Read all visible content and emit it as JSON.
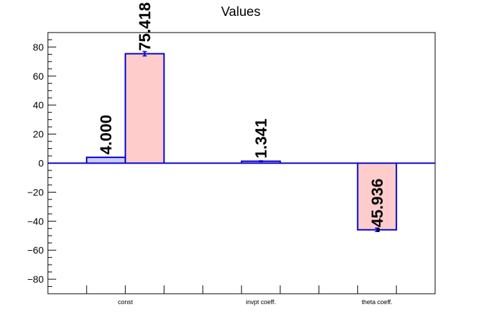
{
  "chart_data": {
    "type": "bar",
    "title": "Values",
    "categories": [
      "const",
      "invpt coeff.",
      "theta coeff."
    ],
    "ylim": [
      -90,
      90
    ],
    "yticks": [
      -80,
      -60,
      -40,
      -20,
      0,
      20,
      40,
      60,
      80
    ],
    "ytick_labels": [
      "−80",
      "−60",
      "−40",
      "−20",
      "0",
      "20",
      "40",
      "60",
      "80"
    ],
    "grid": false,
    "bars": [
      {
        "slot": 0,
        "value": 4.0,
        "error": 0.0,
        "label": "4.000",
        "fill": "#ccccff"
      },
      {
        "slot": 1,
        "value": 75.418,
        "error": 1.5,
        "label": "75.418",
        "fill": "#ffcccc"
      },
      {
        "slot": 4,
        "value": 1.341,
        "error": 0.3,
        "label": "1.341",
        "fill": "#ffcccc"
      },
      {
        "slot": 7,
        "value": -45.936,
        "error": 1.2,
        "label": "-45.936",
        "fill": "#ffcccc"
      }
    ],
    "category_slots": [
      [
        0,
        1
      ],
      [
        3,
        4,
        5
      ],
      [
        6,
        7,
        8
      ]
    ]
  },
  "colors": {
    "edge": "#0000cc",
    "axis": "#000000"
  }
}
